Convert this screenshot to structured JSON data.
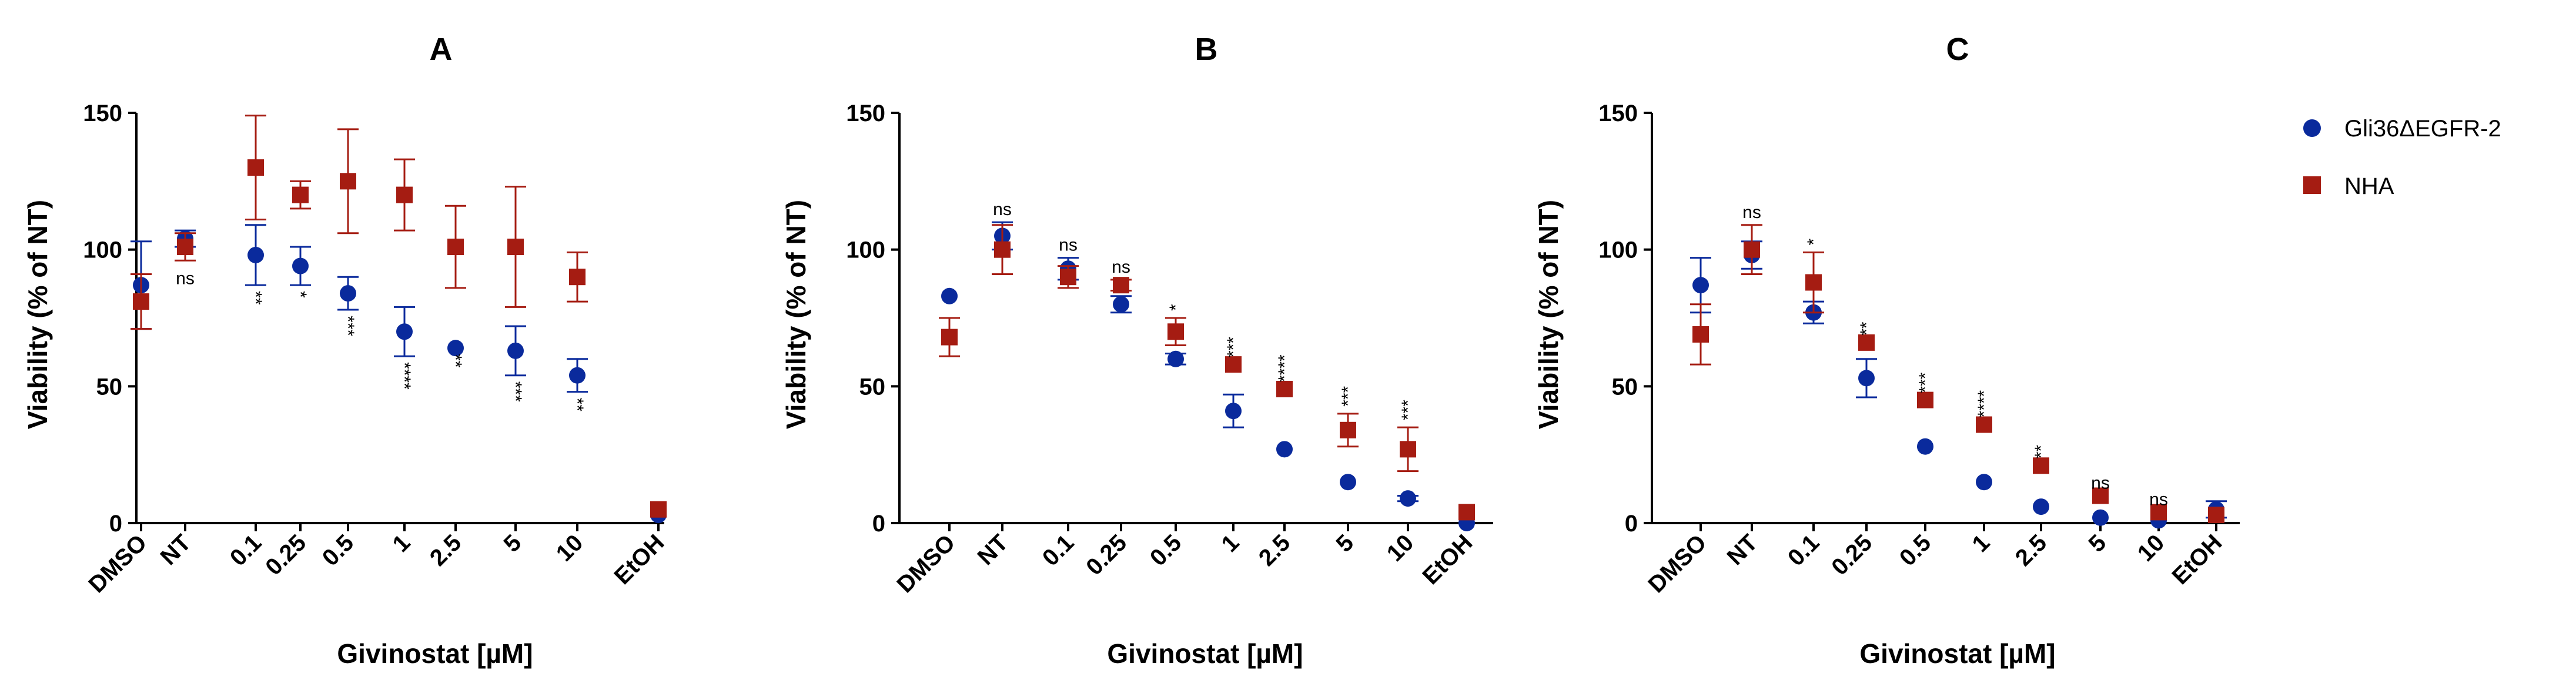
{
  "legend": [
    {
      "name": "Gli36ΔEGFR-2",
      "marker": "circle",
      "color": "#0a2a9c"
    },
    {
      "name": "NHA",
      "marker": "square",
      "color": "#a51c12"
    }
  ],
  "chart_data": [
    {
      "type": "scatter",
      "title": "A",
      "xlabel": "Givinostat [µM]",
      "ylabel": "Viability (% of NT)",
      "ylim": [
        0,
        150
      ],
      "yticks": [
        0,
        50,
        100,
        150
      ],
      "categories": [
        "DMSO",
        "NT",
        "0.1",
        "0.25",
        "0.5",
        "1",
        "2.5",
        "5",
        "10",
        "EtOH"
      ],
      "series": [
        {
          "name": "Gli36ΔEGFR-2",
          "values": [
            87,
            104,
            98,
            94,
            84,
            70,
            64,
            63,
            54,
            3
          ],
          "errors": [
            16,
            3,
            11,
            7,
            6,
            9,
            0,
            9,
            6,
            0
          ]
        },
        {
          "name": "NHA",
          "values": [
            81,
            101,
            130,
            120,
            125,
            120,
            101,
            101,
            90,
            5
          ],
          "errors": [
            10,
            5,
            19,
            5,
            19,
            13,
            15,
            22,
            9,
            0
          ]
        }
      ],
      "significance": [
        "",
        "ns",
        "**",
        "*",
        "***",
        "****",
        "**",
        "***",
        "**",
        ""
      ],
      "significance_position": "below"
    },
    {
      "type": "scatter",
      "title": "B",
      "xlabel": "Givinostat [µM]",
      "ylabel": "Viability (% of NT)",
      "ylim": [
        0,
        150
      ],
      "yticks": [
        0,
        50,
        100,
        150
      ],
      "categories": [
        "DMSO",
        "NT",
        "0.1",
        "0.25",
        "0.5",
        "1",
        "2.5",
        "5",
        "10",
        "EtOH"
      ],
      "series": [
        {
          "name": "Gli36ΔEGFR-2",
          "values": [
            83,
            105,
            93,
            80,
            60,
            41,
            27,
            15,
            9,
            0
          ],
          "errors": [
            0,
            5,
            4,
            3,
            2,
            6,
            0,
            0,
            1,
            0
          ]
        },
        {
          "name": "NHA",
          "values": [
            68,
            100,
            90,
            87,
            70,
            58,
            49,
            34,
            27,
            4
          ],
          "errors": [
            7,
            9,
            4,
            2,
            5,
            0,
            0,
            6,
            8,
            0
          ]
        }
      ],
      "significance": [
        "",
        "ns",
        "ns",
        "ns",
        "*",
        "***",
        "****",
        "***",
        "***",
        ""
      ],
      "significance_position": "above"
    },
    {
      "type": "scatter",
      "title": "C",
      "xlabel": "Givinostat [µM]",
      "ylabel": "Viability (% of NT)",
      "ylim": [
        0,
        150
      ],
      "yticks": [
        0,
        50,
        100,
        150
      ],
      "categories": [
        "DMSO",
        "NT",
        "0.1",
        "0.25",
        "0.5",
        "1",
        "2.5",
        "5",
        "10",
        "EtOH"
      ],
      "series": [
        {
          "name": "Gli36ΔEGFR-2",
          "values": [
            87,
            98,
            77,
            53,
            28,
            15,
            6,
            2,
            1,
            5
          ],
          "errors": [
            10,
            5,
            4,
            7,
            0,
            0,
            0,
            0,
            0,
            3
          ]
        },
        {
          "name": "NHA",
          "values": [
            69,
            100,
            88,
            66,
            45,
            36,
            21,
            10,
            4,
            3
          ],
          "errors": [
            11,
            9,
            11,
            0,
            0,
            0,
            0,
            0,
            0,
            0
          ]
        }
      ],
      "significance": [
        "",
        "ns",
        "*",
        "**",
        "***",
        "****",
        "**",
        "ns",
        "ns",
        ""
      ],
      "significance_position": "above"
    }
  ]
}
